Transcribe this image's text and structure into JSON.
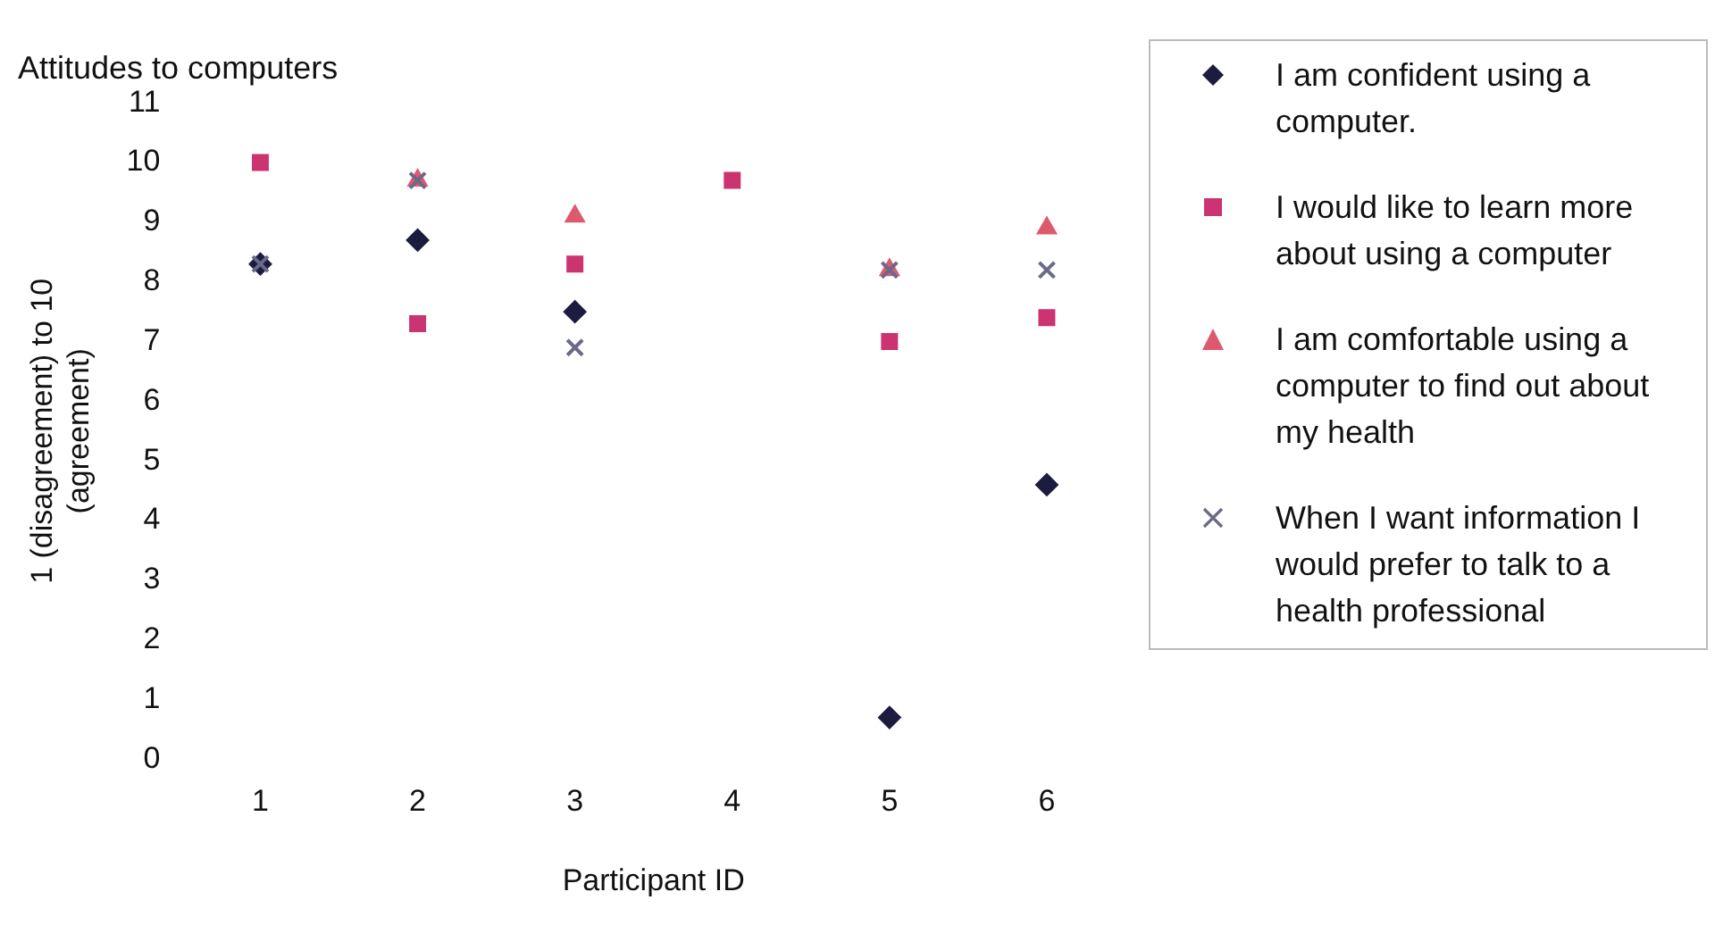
{
  "chart_data": {
    "type": "scatter",
    "title": "Attitudes to computers",
    "xlabel": "Participant ID",
    "ylabel": "1 (disagreement) to 10 (agreement)",
    "categories": [
      "1",
      "2",
      "3",
      "4",
      "5",
      "6"
    ],
    "ylim": [
      0,
      11
    ],
    "yticks": [
      0,
      1,
      2,
      3,
      4,
      5,
      6,
      7,
      8,
      9,
      10,
      11
    ],
    "grid": false,
    "legend": "right",
    "series": [
      {
        "name": "I am confident using a computer.",
        "color": "#1c1c40",
        "marker": "diamond",
        "values": [
          8.3,
          8.7,
          7.5,
          null,
          0.7,
          4.6
        ]
      },
      {
        "name": "I would like to learn more about using a computer",
        "color": "#cc3371",
        "marker": "square",
        "values": [
          10,
          7.3,
          8.3,
          9.7,
          7.0,
          7.4
        ]
      },
      {
        "name": "I am comfortable using a computer to find out about my health",
        "color": "#dd5a6e",
        "marker": "triangle",
        "values": [
          null,
          9.7,
          9.1,
          null,
          8.2,
          8.9
        ]
      },
      {
        "name": "When I want information I would prefer to talk to a health professional",
        "color": "#6a6a88",
        "marker": "cross",
        "values": [
          8.3,
          9.7,
          6.9,
          null,
          8.2,
          8.2
        ]
      }
    ]
  }
}
